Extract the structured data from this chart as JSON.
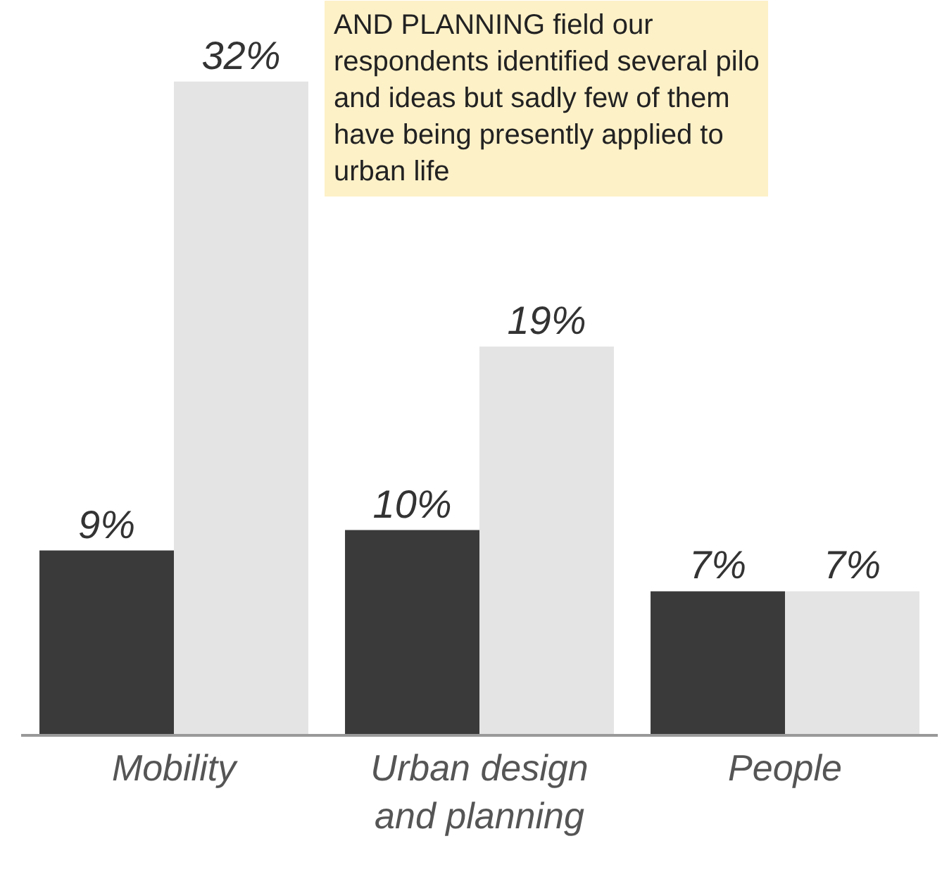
{
  "chart_data": {
    "type": "bar",
    "categories": [
      "Mobility",
      "Urban design\nand planning",
      "People"
    ],
    "series": [
      {
        "color": "#3a3a3a",
        "values": [
          9,
          10,
          7
        ],
        "value_labels": [
          "9%",
          "10%",
          "7%"
        ]
      },
      {
        "color": "#e4e4e4",
        "values": [
          32,
          19,
          7
        ],
        "value_labels": [
          "32%",
          "19%",
          "7%"
        ]
      }
    ],
    "ylim": [
      0,
      36
    ],
    "tick_labels": "x",
    "annotations": [
      "AND PLANNING field our\nrespondents identified several pilo\nand ideas but sadly few of them\nhave being presently applied to\nurban life"
    ]
  }
}
